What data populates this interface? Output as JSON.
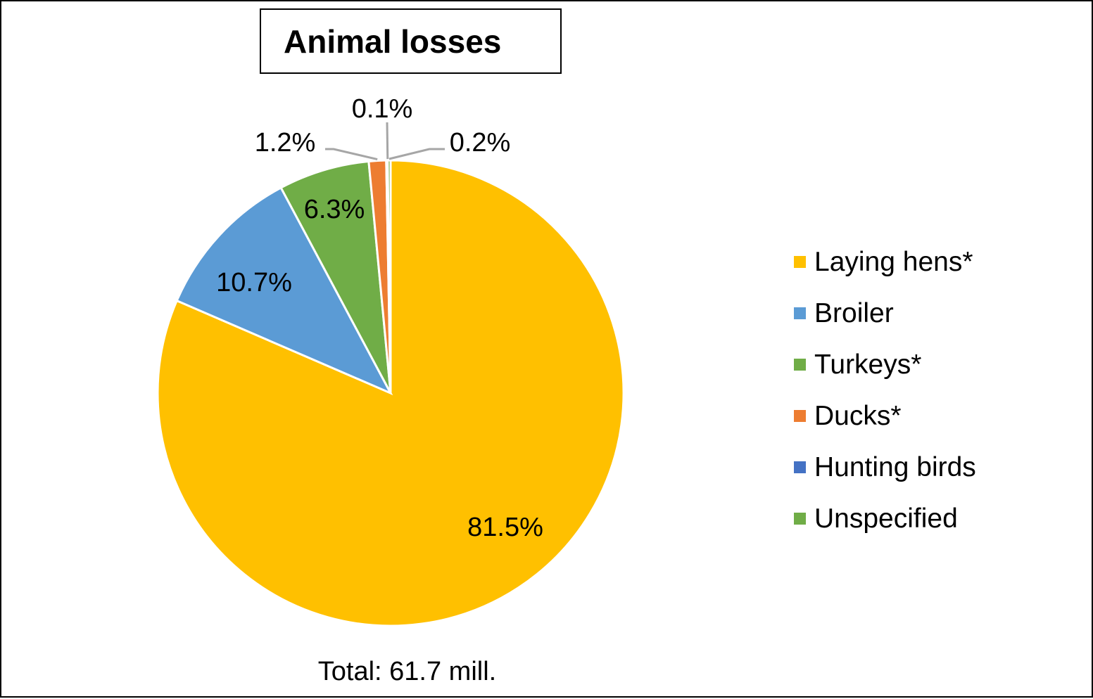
{
  "chart_data": {
    "type": "pie",
    "title": "Animal losses",
    "total_label": "Total: 61.7 mill.",
    "legend_position": "right",
    "categories": [
      "Laying hens*",
      "Broiler",
      "Turkeys*",
      "Ducks*",
      "Hunting birds",
      "Unspecified"
    ],
    "values": [
      81.5,
      10.7,
      6.3,
      1.2,
      0.1,
      0.2
    ],
    "data_labels": [
      "81.5%",
      "10.7%",
      "6.3%",
      "1.2%",
      "0.1%",
      "0.2%"
    ],
    "colors": [
      "#FFC000",
      "#5B9BD5",
      "#70AD47",
      "#ED7D31",
      "#4472C4",
      "#70AD47"
    ]
  }
}
